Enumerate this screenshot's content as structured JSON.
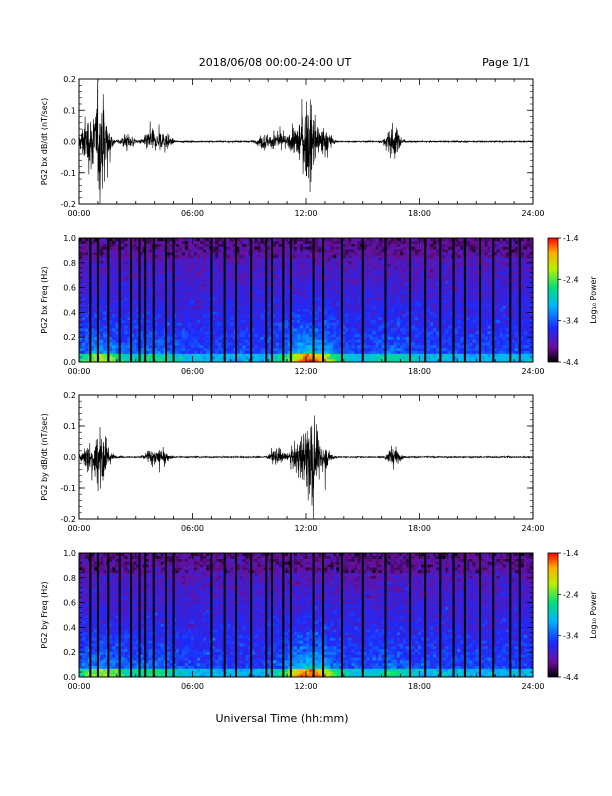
{
  "header": {
    "title": "2018/06/08  00:00-24:00 UT",
    "page": "Page 1/1"
  },
  "footer": {
    "xlabel": "Universal Time (hh:mm)"
  },
  "colorbar": {
    "label": "Log₁₀ Power",
    "ticks": [
      "-1.4",
      "-2.4",
      "-3.4",
      "-4.4"
    ],
    "range": [
      -4.4,
      -1.4
    ]
  },
  "colors": {
    "trace": "#000000",
    "gap": "#000000"
  },
  "chart_data": [
    {
      "type": "line",
      "ylabel": "PG2 bx dB/dt (nT/sec)",
      "xlabel": "",
      "x_ticks": [
        "00:00",
        "06:00",
        "12:00",
        "18:00",
        "24:00"
      ],
      "y_ticks": [
        "0.2",
        "0.1",
        "0.0",
        "-0.1",
        "-0.2"
      ],
      "xlim": [
        0,
        24
      ],
      "ylim": [
        -0.2,
        0.2
      ],
      "series": [
        {
          "x_unit": "hours UT",
          "activity_peaks": [
            {
              "t": 0.4,
              "amp": 0.14
            },
            {
              "t": 1.0,
              "amp": 0.17
            },
            {
              "t": 1.3,
              "amp": 0.2
            },
            {
              "t": 2.6,
              "amp": 0.05
            },
            {
              "t": 3.8,
              "amp": 0.07
            },
            {
              "t": 4.5,
              "amp": 0.06
            },
            {
              "t": 9.8,
              "amp": 0.05
            },
            {
              "t": 10.6,
              "amp": 0.06
            },
            {
              "t": 11.5,
              "amp": 0.09
            },
            {
              "t": 12.0,
              "amp": 0.13
            },
            {
              "t": 12.3,
              "amp": 0.17
            },
            {
              "t": 13.0,
              "amp": 0.08
            },
            {
              "t": 16.6,
              "amp": 0.1
            }
          ]
        }
      ]
    },
    {
      "type": "heatmap",
      "ylabel": "PG2 bx Freq (Hz)",
      "xlabel": "",
      "x_ticks": [
        "00:00",
        "06:00",
        "12:00",
        "18:00",
        "24:00"
      ],
      "y_ticks": [
        "1.0",
        "0.8",
        "0.6",
        "0.4",
        "0.2",
        "0.0"
      ],
      "xlim": [
        0,
        24
      ],
      "ylim": [
        0,
        1.0
      ],
      "zlim": [
        -4.4,
        -1.4
      ],
      "data_gaps_hours": [
        0.6,
        1.0,
        1.55,
        2.15,
        2.75,
        3.2,
        3.5,
        3.95,
        4.6,
        5.0,
        7.0,
        7.7,
        8.3,
        9.1,
        9.9,
        10.2,
        10.8,
        11.2,
        12.4,
        12.9,
        13.9,
        15.0,
        16.2,
        17.5,
        18.3,
        19.1,
        19.8,
        20.4,
        21.2,
        21.9,
        22.8,
        23.3
      ]
    },
    {
      "type": "line",
      "ylabel": "PG2 by dB/dt (nT/sec)",
      "xlabel": "",
      "x_ticks": [
        "00:00",
        "06:00",
        "12:00",
        "18:00",
        "24:00"
      ],
      "y_ticks": [
        "0.2",
        "0.1",
        "0.0",
        "-0.1",
        "-0.2"
      ],
      "xlim": [
        0,
        24
      ],
      "ylim": [
        -0.2,
        0.2
      ],
      "series": [
        {
          "x_unit": "hours UT",
          "activity_peaks": [
            {
              "t": 0.5,
              "amp": 0.08
            },
            {
              "t": 1.0,
              "amp": 0.12
            },
            {
              "t": 1.3,
              "amp": 0.09
            },
            {
              "t": 3.8,
              "amp": 0.05
            },
            {
              "t": 4.4,
              "amp": 0.04
            },
            {
              "t": 10.5,
              "amp": 0.05
            },
            {
              "t": 11.5,
              "amp": 0.08
            },
            {
              "t": 12.1,
              "amp": 0.16
            },
            {
              "t": 12.35,
              "amp": 0.19
            },
            {
              "t": 13.0,
              "amp": 0.06
            },
            {
              "t": 16.6,
              "amp": 0.06
            }
          ]
        }
      ]
    },
    {
      "type": "heatmap",
      "ylabel": "PG2 by Freq (Hz)",
      "xlabel": "",
      "x_ticks": [
        "00:00",
        "06:00",
        "12:00",
        "18:00",
        "24:00"
      ],
      "y_ticks": [
        "1.0",
        "0.8",
        "0.6",
        "0.4",
        "0.2",
        "0.0"
      ],
      "xlim": [
        0,
        24
      ],
      "ylim": [
        0,
        1.0
      ],
      "zlim": [
        -4.4,
        -1.4
      ],
      "data_gaps_hours": [
        0.6,
        1.0,
        1.55,
        2.15,
        2.75,
        3.2,
        3.5,
        3.95,
        4.6,
        5.0,
        7.0,
        7.7,
        8.3,
        9.1,
        9.9,
        10.2,
        10.8,
        11.2,
        12.4,
        12.9,
        13.9,
        15.0,
        16.2,
        17.5,
        18.3,
        19.1,
        19.8,
        20.4,
        21.2,
        21.9,
        22.8,
        23.3
      ]
    }
  ]
}
